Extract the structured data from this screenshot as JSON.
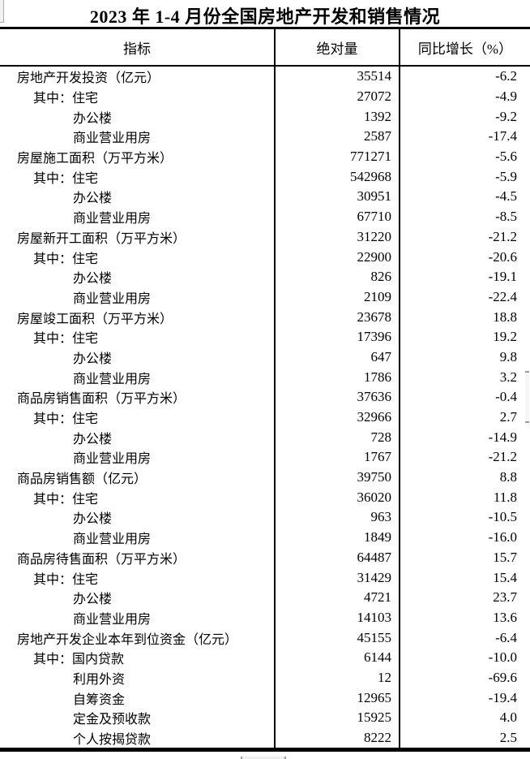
{
  "title": "2023 年 1-4 月份全国房地产开发和销售情况",
  "colors": {
    "text": "#000000",
    "background": "#ffffff",
    "table_border": "#000000",
    "scrollbar_track": "#f2f2f2",
    "scrollbar_edge": "#999999"
  },
  "table": {
    "columns": [
      "指标",
      "绝对量",
      "同比增长（%）"
    ],
    "rows": [
      {
        "level": 1,
        "indicator": "房地产开发投资（亿元）",
        "absolute": "35514",
        "growth": "-6.2"
      },
      {
        "level": 2,
        "indicator": "其中：住宅",
        "absolute": "27072",
        "growth": "-4.9"
      },
      {
        "level": 3,
        "indicator": "办公楼",
        "absolute": "1392",
        "growth": "-9.2"
      },
      {
        "level": 3,
        "indicator": "商业营业用房",
        "absolute": "2587",
        "growth": "-17.4"
      },
      {
        "level": 1,
        "indicator": "房屋施工面积（万平方米）",
        "absolute": "771271",
        "growth": "-5.6"
      },
      {
        "level": 2,
        "indicator": "其中：住宅",
        "absolute": "542968",
        "growth": "-5.9"
      },
      {
        "level": 3,
        "indicator": "办公楼",
        "absolute": "30951",
        "growth": "-4.5"
      },
      {
        "level": 3,
        "indicator": "商业营业用房",
        "absolute": "67710",
        "growth": "-8.5"
      },
      {
        "level": 1,
        "indicator": "房屋新开工面积（万平方米）",
        "absolute": "31220",
        "growth": "-21.2"
      },
      {
        "level": 2,
        "indicator": "其中：住宅",
        "absolute": "22900",
        "growth": "-20.6"
      },
      {
        "level": 3,
        "indicator": "办公楼",
        "absolute": "826",
        "growth": "-19.1"
      },
      {
        "level": 3,
        "indicator": "商业营业用房",
        "absolute": "2109",
        "growth": "-22.4"
      },
      {
        "level": 1,
        "indicator": "房屋竣工面积（万平方米）",
        "absolute": "23678",
        "growth": "18.8"
      },
      {
        "level": 2,
        "indicator": "其中：住宅",
        "absolute": "17396",
        "growth": "19.2"
      },
      {
        "level": 3,
        "indicator": "办公楼",
        "absolute": "647",
        "growth": "9.8"
      },
      {
        "level": 3,
        "indicator": "商业营业用房",
        "absolute": "1786",
        "growth": "3.2"
      },
      {
        "level": 1,
        "indicator": "商品房销售面积（万平方米）",
        "absolute": "37636",
        "growth": "-0.4"
      },
      {
        "level": 2,
        "indicator": "其中：住宅",
        "absolute": "32966",
        "growth": "2.7"
      },
      {
        "level": 3,
        "indicator": "办公楼",
        "absolute": "728",
        "growth": "-14.9"
      },
      {
        "level": 3,
        "indicator": "商业营业用房",
        "absolute": "1767",
        "growth": "-21.2"
      },
      {
        "level": 1,
        "indicator": "商品房销售额（亿元）",
        "absolute": "39750",
        "growth": "8.8"
      },
      {
        "level": 2,
        "indicator": "其中：住宅",
        "absolute": "36020",
        "growth": "11.8"
      },
      {
        "level": 3,
        "indicator": "办公楼",
        "absolute": "963",
        "growth": "-10.5"
      },
      {
        "level": 3,
        "indicator": "商业营业用房",
        "absolute": "1849",
        "growth": "-16.0"
      },
      {
        "level": 1,
        "indicator": "商品房待售面积（万平方米）",
        "absolute": "64487",
        "growth": "15.7"
      },
      {
        "level": 2,
        "indicator": "其中：住宅",
        "absolute": "31429",
        "growth": "15.4"
      },
      {
        "level": 3,
        "indicator": "办公楼",
        "absolute": "4721",
        "growth": "23.7"
      },
      {
        "level": 3,
        "indicator": "商业营业用房",
        "absolute": "14103",
        "growth": "13.6"
      },
      {
        "level": 1,
        "indicator": "房地产开发企业本年到位资金（亿元）",
        "absolute": "45155",
        "growth": "-6.4"
      },
      {
        "level": 2,
        "indicator": "其中：国内贷款",
        "absolute": "6144",
        "growth": "-10.0"
      },
      {
        "level": 3,
        "indicator": "利用外资",
        "absolute": "12",
        "growth": "-69.6"
      },
      {
        "level": 3,
        "indicator": "自筹资金",
        "absolute": "12965",
        "growth": "-19.4"
      },
      {
        "level": 3,
        "indicator": "定金及预收款",
        "absolute": "15925",
        "growth": "4.0"
      },
      {
        "level": 3,
        "indicator": "个人按揭贷款",
        "absolute": "8222",
        "growth": "2.5"
      }
    ]
  }
}
